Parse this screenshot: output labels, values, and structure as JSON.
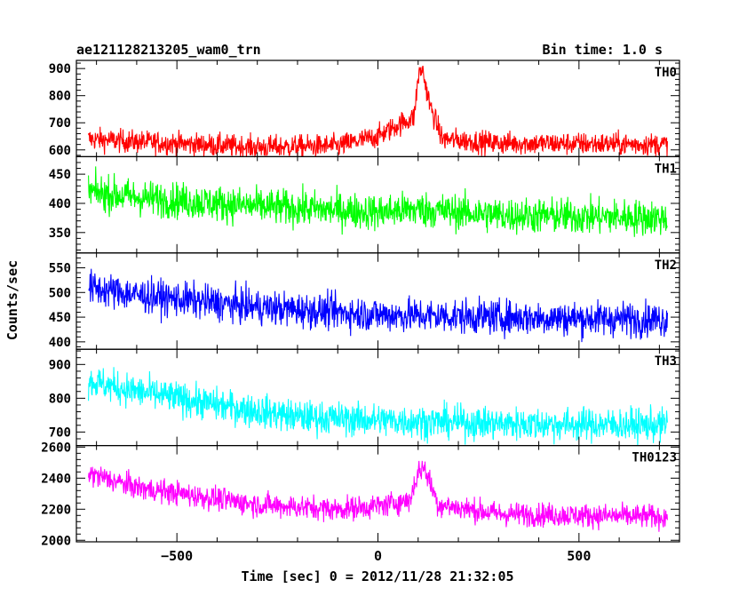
{
  "header": {
    "left_title": "ae121128213205_wam0_trn",
    "right_title": "Bin time: 1.0 s"
  },
  "chart_data": {
    "type": "line",
    "title": "ae121128213205_wam0_trn",
    "bin_time": "Bin time: 1.0 s",
    "xlabel": "Time [sec] 0 = 2012/11/28 21:32:05",
    "ylabel": "Counts/sec",
    "xlim": [
      -750,
      750
    ],
    "x_range": [
      -720,
      720
    ],
    "xticks": [
      -500,
      0,
      500
    ],
    "xtick_labels": [
      "−500",
      "0",
      "500"
    ],
    "grid": false,
    "panels": [
      {
        "name": "TH0",
        "color": "#ff0000",
        "ylim": [
          575,
          930
        ],
        "yticks": [
          600,
          700,
          800,
          900
        ],
        "ytick_labels": [
          "600",
          "700",
          "800",
          "900"
        ],
        "trend": [
          [
            -720,
            640
          ],
          [
            -600,
            630
          ],
          [
            -300,
            610
          ],
          [
            -100,
            615
          ],
          [
            0,
            650
          ],
          [
            60,
            700
          ],
          [
            90,
            720
          ],
          [
            100,
            870
          ],
          [
            110,
            900
          ],
          [
            130,
            760
          ],
          [
            160,
            640
          ],
          [
            300,
            625
          ],
          [
            720,
            620
          ]
        ],
        "noise": 30
      },
      {
        "name": "TH1",
        "color": "#00ff00",
        "ylim": [
          315,
          480
        ],
        "yticks": [
          350,
          400,
          450
        ],
        "ytick_labels": [
          "350",
          "400",
          "450"
        ],
        "trend": [
          [
            -720,
            420
          ],
          [
            -600,
            410
          ],
          [
            -300,
            395
          ],
          [
            0,
            385
          ],
          [
            100,
            390
          ],
          [
            300,
            380
          ],
          [
            720,
            375
          ]
        ],
        "noise": 22
      },
      {
        "name": "TH2",
        "color": "#0000ff",
        "ylim": [
          385,
          580
        ],
        "yticks": [
          400,
          450,
          500,
          550
        ],
        "ytick_labels": [
          "400",
          "450",
          "500",
          "550"
        ],
        "trend": [
          [
            -720,
            510
          ],
          [
            -600,
            495
          ],
          [
            -300,
            470
          ],
          [
            0,
            455
          ],
          [
            300,
            450
          ],
          [
            720,
            445
          ]
        ],
        "noise": 25
      },
      {
        "name": "TH3",
        "color": "#00ffff",
        "ylim": [
          660,
          945
        ],
        "yticks": [
          700,
          800,
          900
        ],
        "ytick_labels": [
          "700",
          "800",
          "900"
        ],
        "trend": [
          [
            -720,
            850
          ],
          [
            -600,
            820
          ],
          [
            -400,
            780
          ],
          [
            -200,
            745
          ],
          [
            0,
            735
          ],
          [
            300,
            725
          ],
          [
            720,
            720
          ]
        ],
        "noise": 35
      },
      {
        "name": "TH0123",
        "color": "#ff00ff",
        "ylim": [
          1990,
          2610
        ],
        "yticks": [
          2000,
          2200,
          2400,
          2600
        ],
        "ytick_labels": [
          "2000",
          "2200",
          "2400",
          "2600"
        ],
        "trend": [
          [
            -720,
            2430
          ],
          [
            -600,
            2340
          ],
          [
            -300,
            2230
          ],
          [
            -100,
            2200
          ],
          [
            0,
            2220
          ],
          [
            80,
            2260
          ],
          [
            100,
            2440
          ],
          [
            115,
            2470
          ],
          [
            150,
            2230
          ],
          [
            300,
            2170
          ],
          [
            720,
            2150
          ]
        ],
        "noise": 55
      }
    ]
  }
}
